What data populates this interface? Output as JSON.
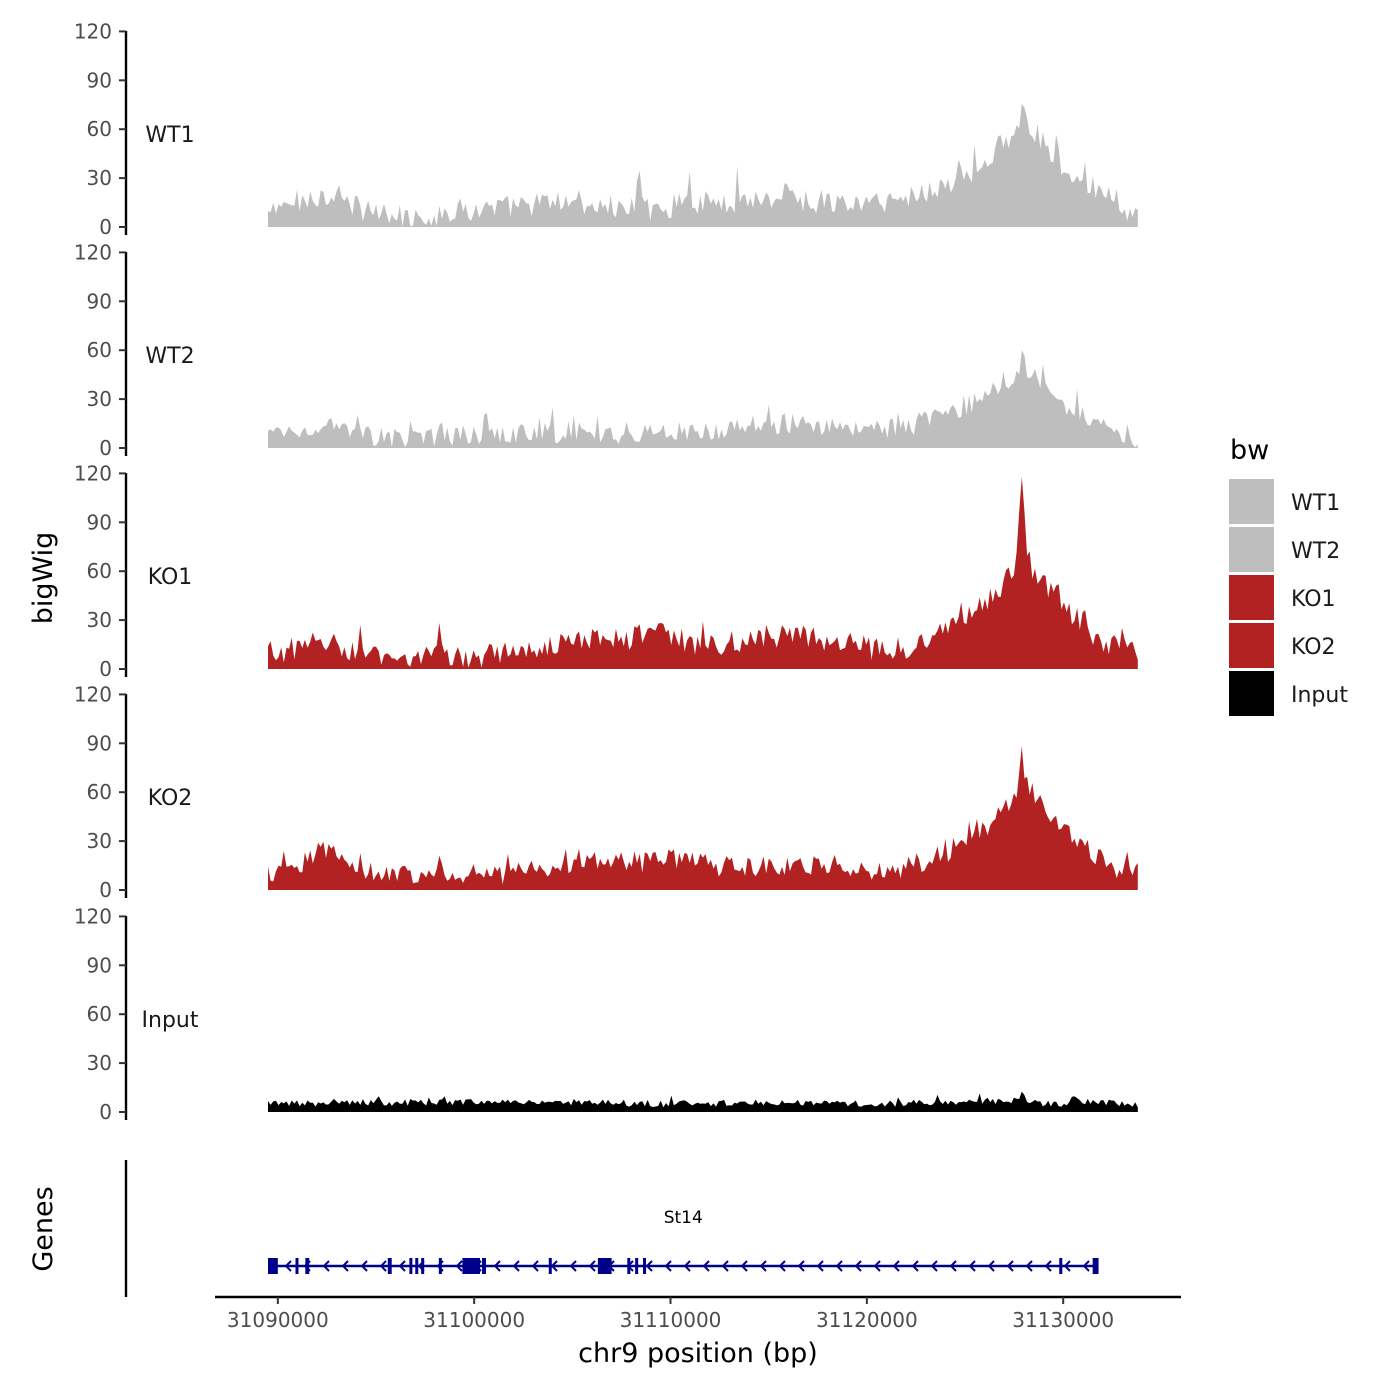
{
  "chart_data": {
    "type": "area",
    "title": "",
    "xlabel": "chr9 position (bp)",
    "ylabel": "bigWig",
    "genes_label": "Genes",
    "x_range": [
      31089500,
      31133800
    ],
    "xlim": [
      31086800,
      31136000
    ],
    "x_ticks": [
      31090000,
      31100000,
      31110000,
      31120000,
      31130000
    ],
    "x_tick_labels": [
      "31090000",
      "31100000",
      "31110000",
      "31120000",
      "31130000"
    ],
    "ylim": [
      0,
      120
    ],
    "y_ticks": [
      0,
      30,
      60,
      90,
      120
    ],
    "y_tick_labels": [
      "0",
      "30",
      "60",
      "90",
      "120"
    ],
    "series": [
      {
        "name": "WT1",
        "label": "WT1",
        "color": "#bebebe",
        "noise": 14,
        "keypoints": [
          [
            31089500,
            8
          ],
          [
            31091000,
            16
          ],
          [
            31092500,
            20
          ],
          [
            31094000,
            12
          ],
          [
            31095500,
            7
          ],
          [
            31097500,
            5
          ],
          [
            31099000,
            10
          ],
          [
            31101000,
            11
          ],
          [
            31103000,
            14
          ],
          [
            31105000,
            16
          ],
          [
            31107000,
            12
          ],
          [
            31108500,
            10
          ],
          [
            31110000,
            13
          ],
          [
            31112000,
            15
          ],
          [
            31114000,
            17
          ],
          [
            31116000,
            18
          ],
          [
            31118000,
            15
          ],
          [
            31120000,
            14
          ],
          [
            31122000,
            18
          ],
          [
            31124000,
            26
          ],
          [
            31125500,
            34
          ],
          [
            31126500,
            46
          ],
          [
            31127500,
            58
          ],
          [
            31128200,
            60
          ],
          [
            31129000,
            52
          ],
          [
            31130000,
            38
          ],
          [
            31131500,
            24
          ],
          [
            31132800,
            16
          ],
          [
            31133800,
            4
          ]
        ],
        "peaks": [
          [
            31108400,
            20
          ],
          [
            31115800,
            8
          ],
          [
            31127900,
            10
          ]
        ]
      },
      {
        "name": "WT2",
        "label": "WT2",
        "color": "#bebebe",
        "noise": 12,
        "keypoints": [
          [
            31089500,
            8
          ],
          [
            31091000,
            12
          ],
          [
            31092500,
            13
          ],
          [
            31094000,
            9
          ],
          [
            31095500,
            6
          ],
          [
            31097500,
            6
          ],
          [
            31099000,
            7
          ],
          [
            31101000,
            8
          ],
          [
            31103000,
            9
          ],
          [
            31105000,
            10
          ],
          [
            31107000,
            9
          ],
          [
            31108500,
            8
          ],
          [
            31110000,
            10
          ],
          [
            31112000,
            11
          ],
          [
            31114000,
            14
          ],
          [
            31116000,
            15
          ],
          [
            31118000,
            13
          ],
          [
            31120000,
            11
          ],
          [
            31122000,
            13
          ],
          [
            31124000,
            20
          ],
          [
            31125500,
            28
          ],
          [
            31126500,
            38
          ],
          [
            31127500,
            45
          ],
          [
            31128200,
            46
          ],
          [
            31129000,
            40
          ],
          [
            31130000,
            28
          ],
          [
            31131500,
            18
          ],
          [
            31132800,
            12
          ],
          [
            31133800,
            4
          ]
        ],
        "peaks": [
          [
            31127900,
            8
          ]
        ]
      },
      {
        "name": "KO1",
        "label": "KO1",
        "color": "#b22222",
        "noise": 14,
        "keypoints": [
          [
            31089500,
            10
          ],
          [
            31091000,
            13
          ],
          [
            31092500,
            17
          ],
          [
            31094000,
            10
          ],
          [
            31096000,
            8
          ],
          [
            31098000,
            9
          ],
          [
            31100000,
            8
          ],
          [
            31102000,
            10
          ],
          [
            31104000,
            16
          ],
          [
            31106000,
            18
          ],
          [
            31107500,
            17
          ],
          [
            31109000,
            22
          ],
          [
            31110500,
            19
          ],
          [
            31112000,
            13
          ],
          [
            31114000,
            18
          ],
          [
            31116000,
            22
          ],
          [
            31118000,
            18
          ],
          [
            31120000,
            13
          ],
          [
            31122000,
            14
          ],
          [
            31124000,
            22
          ],
          [
            31125500,
            38
          ],
          [
            31126500,
            45
          ],
          [
            31127500,
            62
          ],
          [
            31128200,
            66
          ],
          [
            31129000,
            52
          ],
          [
            31130000,
            38
          ],
          [
            31131500,
            22
          ],
          [
            31132800,
            12
          ],
          [
            31133800,
            8
          ]
        ],
        "peaks": [
          [
            31127900,
            48
          ]
        ]
      },
      {
        "name": "KO2",
        "label": "KO2",
        "color": "#b22222",
        "noise": 12,
        "keypoints": [
          [
            31089500,
            10
          ],
          [
            31091000,
            14
          ],
          [
            31092300,
            26
          ],
          [
            31093500,
            18
          ],
          [
            31095000,
            11
          ],
          [
            31097000,
            10
          ],
          [
            31099000,
            11
          ],
          [
            31101000,
            9
          ],
          [
            31103000,
            13
          ],
          [
            31105000,
            16
          ],
          [
            31107000,
            18
          ],
          [
            31108500,
            17
          ],
          [
            31110000,
            19
          ],
          [
            31112000,
            15
          ],
          [
            31114000,
            14
          ],
          [
            31116000,
            15
          ],
          [
            31118000,
            16
          ],
          [
            31120000,
            12
          ],
          [
            31122000,
            14
          ],
          [
            31124000,
            22
          ],
          [
            31125500,
            35
          ],
          [
            31126500,
            42
          ],
          [
            31127500,
            60
          ],
          [
            31128200,
            62
          ],
          [
            31129000,
            52
          ],
          [
            31130000,
            36
          ],
          [
            31131500,
            22
          ],
          [
            31132800,
            12
          ],
          [
            31133800,
            10
          ]
        ],
        "peaks": [
          [
            31127900,
            22
          ]
        ]
      },
      {
        "name": "Input",
        "label": "Input",
        "color": "#000000",
        "noise": 4,
        "keypoints": [
          [
            31089500,
            5
          ],
          [
            31095000,
            6
          ],
          [
            31100000,
            6
          ],
          [
            31105000,
            6
          ],
          [
            31110000,
            5
          ],
          [
            31115000,
            6
          ],
          [
            31120000,
            5
          ],
          [
            31124000,
            6
          ],
          [
            31127500,
            7
          ],
          [
            31129000,
            5
          ],
          [
            31131000,
            6
          ],
          [
            31133800,
            5
          ]
        ],
        "peaks": [
          [
            31127900,
            4
          ],
          [
            31130600,
            6
          ]
        ]
      }
    ],
    "legend": {
      "title": "bw",
      "position": "right",
      "entries": [
        {
          "label": "WT1",
          "color": "#bebebe"
        },
        {
          "label": "WT2",
          "color": "#bebebe"
        },
        {
          "label": "KO1",
          "color": "#b22222"
        },
        {
          "label": "KO2",
          "color": "#b22222"
        },
        {
          "label": "Input",
          "color": "#000000"
        }
      ]
    },
    "gene": {
      "name": "St14",
      "strand": "-",
      "color": "#00008b",
      "start": 31089500,
      "end": 31131800,
      "exons": [
        [
          31089500,
          31090000
        ],
        [
          31090900,
          31091000
        ],
        [
          31091400,
          31091600
        ],
        [
          31095600,
          31095800
        ],
        [
          31096700,
          31096800
        ],
        [
          31097000,
          31097100
        ],
        [
          31097300,
          31097400
        ],
        [
          31098200,
          31098300
        ],
        [
          31099400,
          31100300
        ],
        [
          31100400,
          31100600
        ],
        [
          31103800,
          31103900
        ],
        [
          31106300,
          31107000
        ],
        [
          31107800,
          31107900
        ],
        [
          31108200,
          31108300
        ],
        [
          31108600,
          31108700
        ],
        [
          31129800,
          31129900
        ],
        [
          31131500,
          31131800
        ]
      ]
    }
  }
}
